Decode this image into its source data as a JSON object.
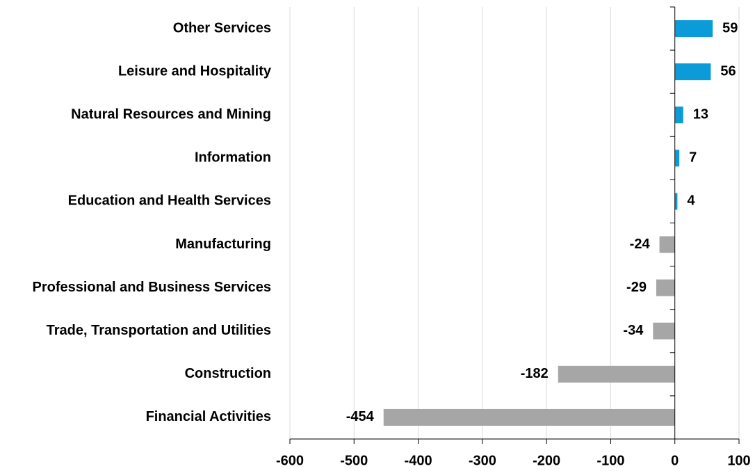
{
  "chart_data": {
    "type": "bar",
    "orientation": "horizontal",
    "categories": [
      "Other Services",
      "Leisure and Hospitality",
      "Natural Resources and Mining",
      "Information",
      "Education and Health Services",
      "Manufacturing",
      "Professional and Business Services",
      "Trade, Transportation and Utilities",
      "Construction",
      "Financial Activities"
    ],
    "values": [
      59,
      56,
      13,
      7,
      4,
      -24,
      -29,
      -34,
      -182,
      -454
    ],
    "colors": [
      "#0a9bd8",
      "#0a9bd8",
      "#0a9bd8",
      "#0a9bd8",
      "#0a9bd8",
      "#a6a6a6",
      "#a6a6a6",
      "#a6a6a6",
      "#a6a6a6",
      "#a6a6a6"
    ],
    "xlim": [
      -600,
      100
    ],
    "xticks": [
      -600,
      -500,
      -400,
      -300,
      -200,
      -100,
      0,
      100
    ],
    "grid": true
  }
}
